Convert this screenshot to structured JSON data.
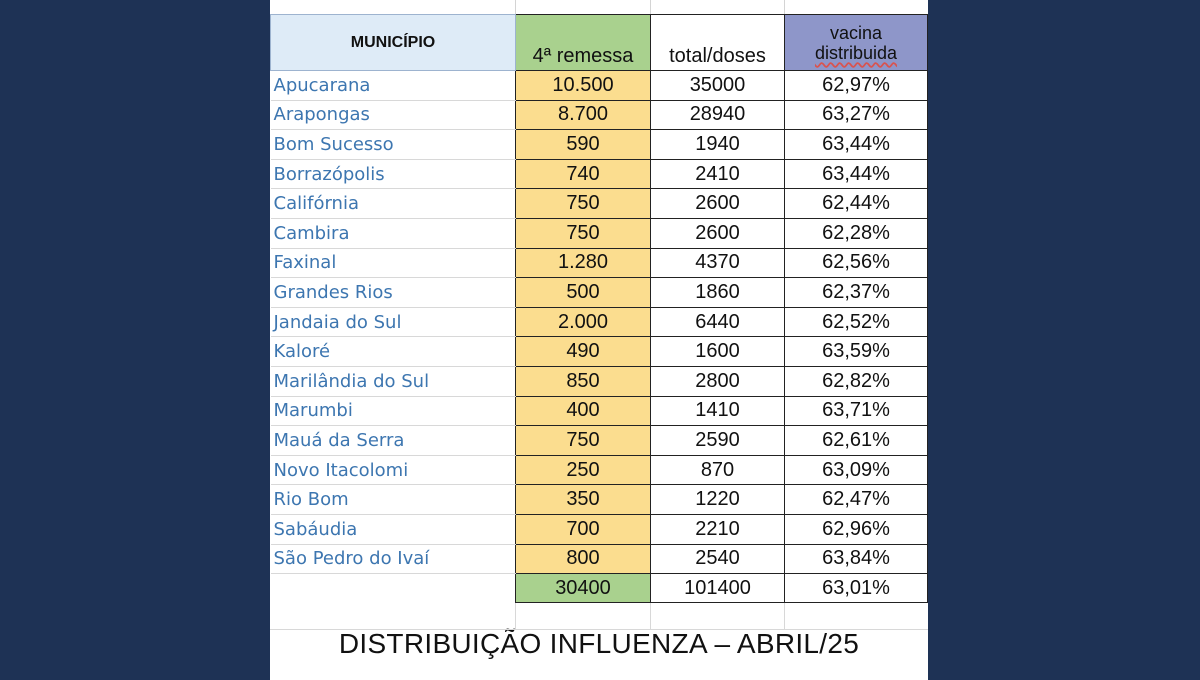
{
  "headers": {
    "municipio": "MUNICÍPIO",
    "remessa": "4ª remessa",
    "total_doses": "total/doses",
    "vacina_line1": "vacina",
    "vacina_line2": "distribuida"
  },
  "rows": [
    {
      "municipio": "Apucarana",
      "remessa": "10.500",
      "total": "35000",
      "pct": "62,97%"
    },
    {
      "municipio": "Arapongas",
      "remessa": "8.700",
      "total": "28940",
      "pct": "63,27%"
    },
    {
      "municipio": "Bom Sucesso",
      "remessa": "590",
      "total": "1940",
      "pct": "63,44%"
    },
    {
      "municipio": "Borrazópolis",
      "remessa": "740",
      "total": "2410",
      "pct": "63,44%"
    },
    {
      "municipio": "Califórnia",
      "remessa": "750",
      "total": "2600",
      "pct": "62,44%"
    },
    {
      "municipio": "Cambira",
      "remessa": "750",
      "total": "2600",
      "pct": "62,28%"
    },
    {
      "municipio": "Faxinal",
      "remessa": "1.280",
      "total": "4370",
      "pct": "62,56%"
    },
    {
      "municipio": "Grandes Rios",
      "remessa": "500",
      "total": "1860",
      "pct": "62,37%"
    },
    {
      "municipio": "Jandaia do Sul",
      "remessa": "2.000",
      "total": "6440",
      "pct": "62,52%"
    },
    {
      "municipio": "Kaloré",
      "remessa": "490",
      "total": "1600",
      "pct": "63,59%"
    },
    {
      "municipio": "Marilândia do Sul",
      "remessa": "850",
      "total": "2800",
      "pct": "62,82%"
    },
    {
      "municipio": "Marumbi",
      "remessa": "400",
      "total": "1410",
      "pct": "63,71%"
    },
    {
      "municipio": "Mauá da Serra",
      "remessa": "750",
      "total": "2590",
      "pct": "62,61%"
    },
    {
      "municipio": "Novo Itacolomi",
      "remessa": "250",
      "total": "870",
      "pct": "63,09%"
    },
    {
      "municipio": "Rio Bom",
      "remessa": "350",
      "total": "1220",
      "pct": "62,47%"
    },
    {
      "municipio": "Sabáudia",
      "remessa": "700",
      "total": "2210",
      "pct": "62,96%"
    },
    {
      "municipio": "São Pedro do Ivaí",
      "remessa": "800",
      "total": "2540",
      "pct": "63,84%"
    }
  ],
  "totals": {
    "remessa": "30400",
    "total": "101400",
    "pct": "63,01%"
  },
  "footer_title": "DISTRIBUIÇÃO INFLUENZA – ABRIL/25",
  "colors": {
    "background": "#1e3255",
    "header_municipio": "#deebf7",
    "header_remessa": "#a9d18e",
    "header_vacina": "#8e96c9",
    "remessa_cells": "#fbdd8f",
    "municipio_text": "#3d76b0"
  }
}
